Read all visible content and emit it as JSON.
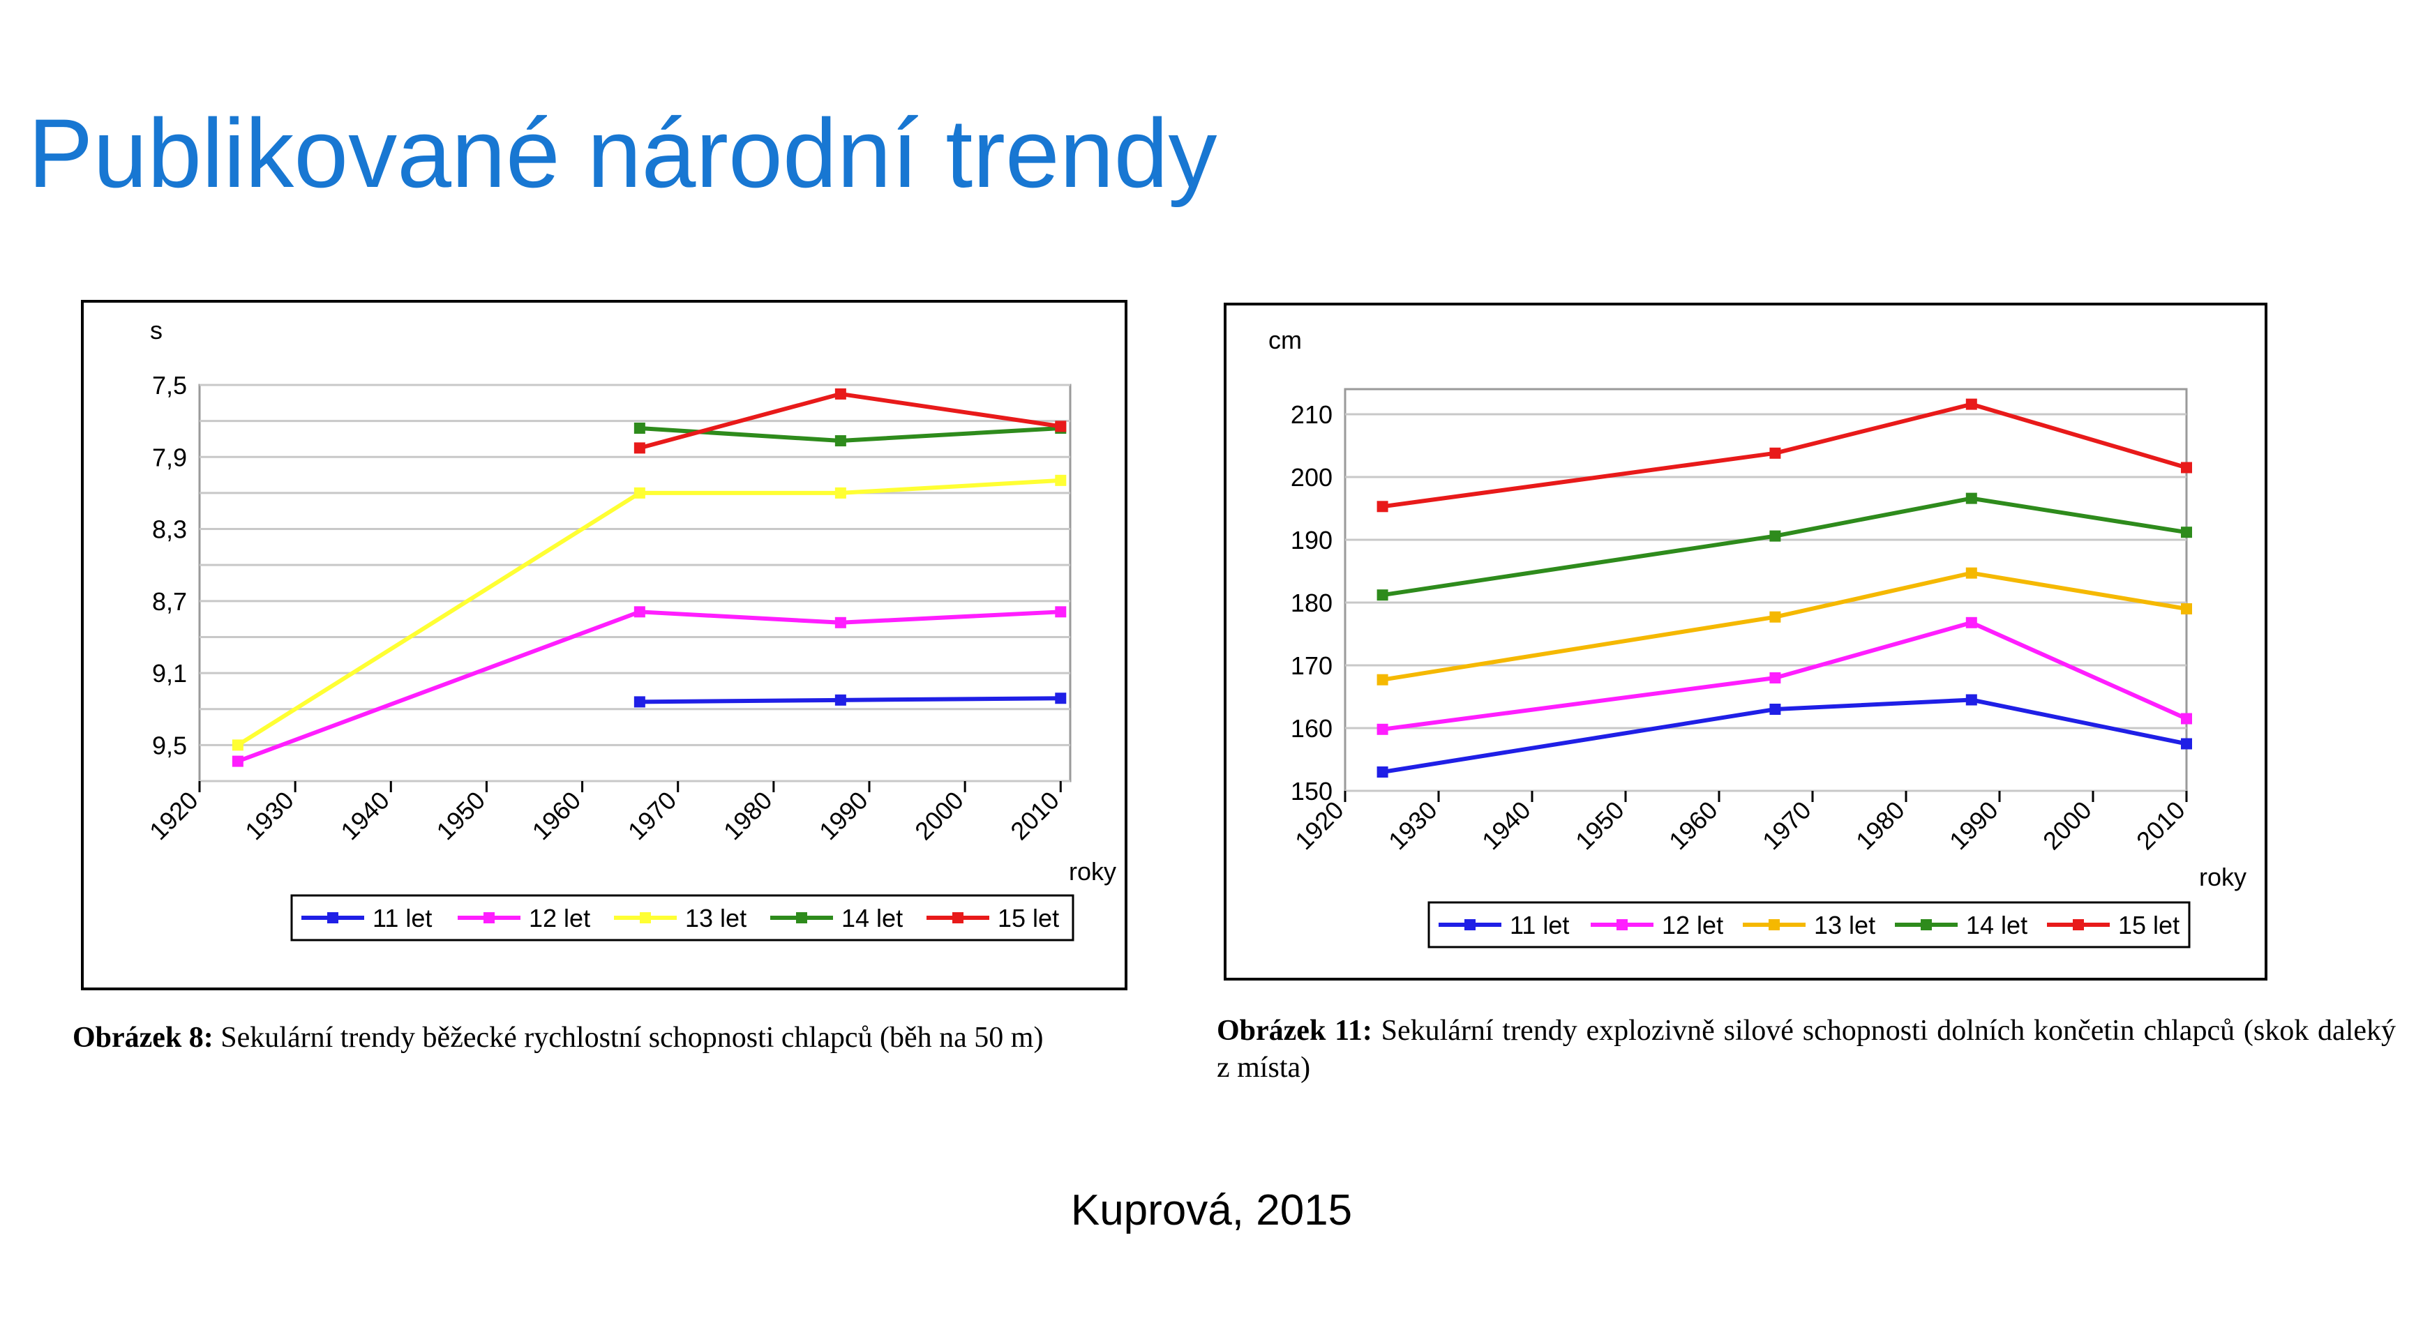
{
  "page": {
    "title": "Publikované národní trendy",
    "credit": "Kuprová, 2015"
  },
  "chart_data": [
    {
      "type": "line",
      "title": "",
      "ylabel": "s",
      "xlabel": "roky",
      "x_ticks": [
        1920,
        1930,
        1940,
        1950,
        1960,
        1970,
        1980,
        1990,
        2000,
        2010
      ],
      "xlim": [
        1920,
        2011
      ],
      "y_ticks": [
        "7,5",
        "7,9",
        "8,3",
        "8,7",
        "9,1",
        "9,5"
      ],
      "ylim": [
        7.5,
        9.7
      ],
      "y_inverted": true,
      "grid": "horizontal",
      "legend_position": "bottom",
      "series": [
        {
          "name": "11 let",
          "color": "#1f1fe6",
          "x": [
            1966,
            1987,
            2010
          ],
          "y": [
            9.26,
            9.25,
            9.24
          ]
        },
        {
          "name": "12 let",
          "color": "#ff1eff",
          "x": [
            1924,
            1966,
            1987,
            2010
          ],
          "y": [
            9.59,
            8.76,
            8.82,
            8.76
          ]
        },
        {
          "name": "13 let",
          "color": "#ffff33",
          "x": [
            1924,
            1966,
            1987,
            2010
          ],
          "y": [
            9.5,
            8.1,
            8.1,
            8.03
          ]
        },
        {
          "name": "14 let",
          "color": "#2e8b1c",
          "x": [
            1966,
            1987,
            2010
          ],
          "y": [
            7.74,
            7.81,
            7.74
          ]
        },
        {
          "name": "15 let",
          "color": "#e81a1a",
          "x": [
            1966,
            1987,
            2010
          ],
          "y": [
            7.85,
            7.55,
            7.73
          ]
        }
      ],
      "caption": {
        "label": "Obrázek 8:",
        "text": " Sekulární trendy běžecké rychlostní schopnosti chlapců (běh na 50 m)"
      }
    },
    {
      "type": "line",
      "title": "",
      "ylabel": "cm",
      "xlabel": "roky",
      "x_ticks": [
        1920,
        1930,
        1940,
        1950,
        1960,
        1970,
        1980,
        1990,
        2000,
        2010
      ],
      "xlim": [
        1920,
        2010
      ],
      "y_ticks": [
        "150",
        "160",
        "170",
        "180",
        "190",
        "200",
        "210"
      ],
      "ylim": [
        150,
        214
      ],
      "y_inverted": false,
      "grid": "horizontal",
      "legend_position": "bottom",
      "series": [
        {
          "name": "11 let",
          "color": "#1f1fe6",
          "x": [
            1924,
            1966,
            1987,
            2010
          ],
          "y": [
            153,
            163,
            164.5,
            157.5
          ]
        },
        {
          "name": "12 let",
          "color": "#ff1eff",
          "x": [
            1924,
            1966,
            1987,
            2010
          ],
          "y": [
            159.8,
            168,
            176.8,
            161.5
          ]
        },
        {
          "name": "13 let",
          "color": "#f5b800",
          "x": [
            1924,
            1966,
            1987,
            2010
          ],
          "y": [
            167.7,
            177.7,
            184.7,
            179
          ]
        },
        {
          "name": "14 let",
          "color": "#2e8b1c",
          "x": [
            1924,
            1966,
            1987,
            2010
          ],
          "y": [
            181.2,
            190.6,
            196.6,
            191.2
          ]
        },
        {
          "name": "15 let",
          "color": "#e81a1a",
          "x": [
            1924,
            1966,
            1987,
            2010
          ],
          "y": [
            195.3,
            203.8,
            211.6,
            201.5
          ]
        }
      ],
      "caption": {
        "label": "Obrázek 11:",
        "text": " Sekulární trendy explozivně silové schopnosti dolních končetin chlapců (skok daleký z místa)"
      }
    }
  ]
}
